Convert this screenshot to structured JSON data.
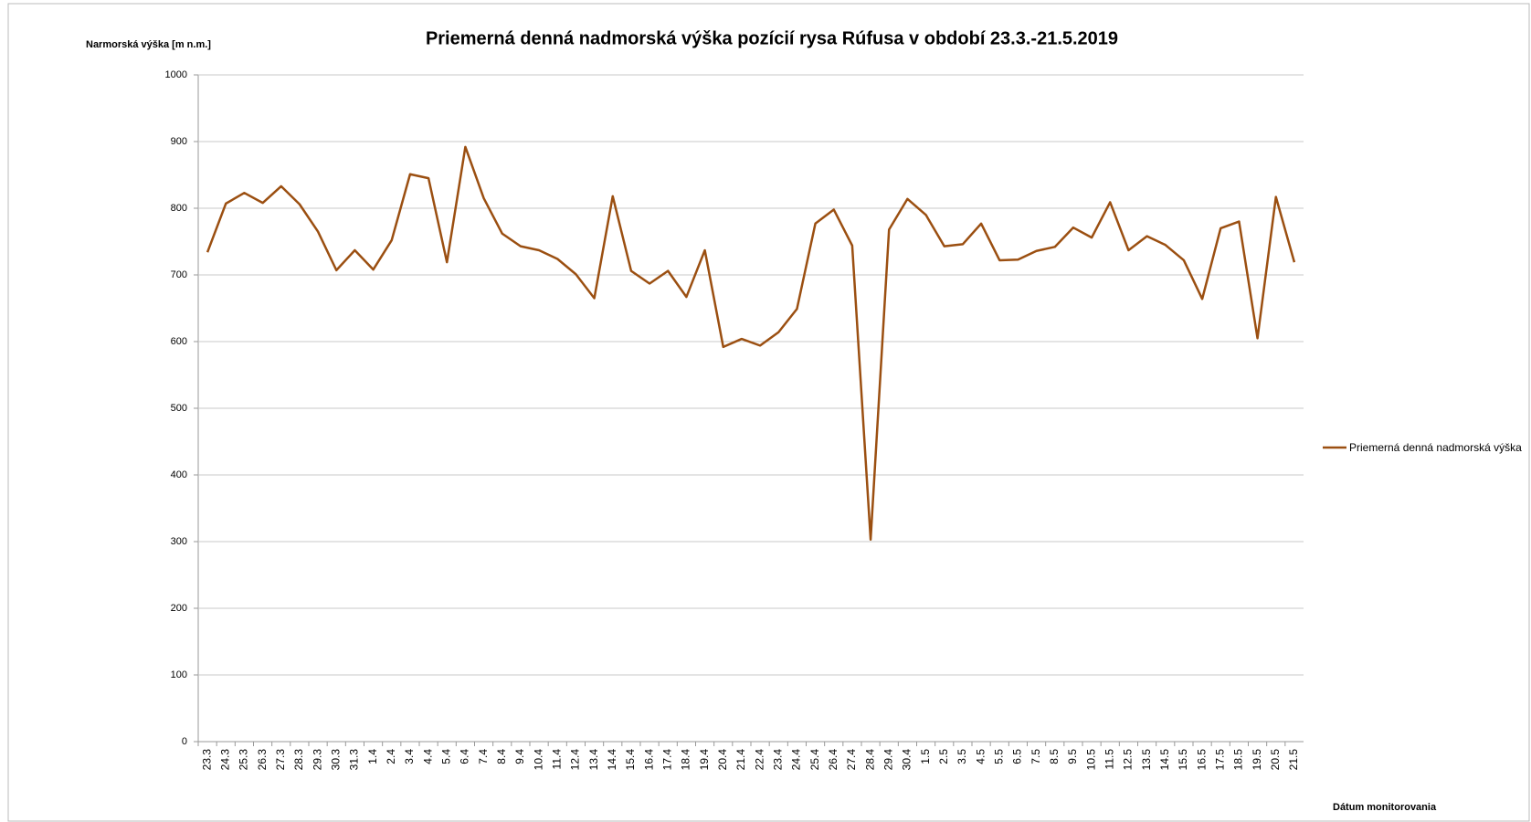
{
  "chart_data": {
    "type": "line",
    "title": "Priemerná denná nadmorská výška pozícií rysa Rúfusa v období 23.3.-21.5.2019",
    "y_label": "Narmorská výška [m n.m.]",
    "x_label": "Dátum monitorovania",
    "categories": [
      "23.3",
      "24.3",
      "25.3",
      "26.3",
      "27.3",
      "28.3",
      "29.3",
      "30.3",
      "31.3",
      "1.4",
      "2.4",
      "3.4",
      "4.4",
      "5.4",
      "6.4",
      "7.4",
      "8.4",
      "9.4",
      "10.4",
      "11.4",
      "12.4",
      "13.4",
      "14.4",
      "15.4",
      "16.4",
      "17.4",
      "18.4",
      "19.4",
      "20.4",
      "21.4",
      "22.4",
      "23.4",
      "24.4",
      "25.4",
      "26.4",
      "27.4",
      "28.4",
      "29.4",
      "30.4",
      "1.5",
      "2.5",
      "3.5",
      "4.5",
      "5.5",
      "6.5",
      "7.5",
      "8.5",
      "9.5",
      "10.5",
      "11.5",
      "12.5",
      "13.5",
      "14.5",
      "15.5",
      "16.5",
      "17.5",
      "18.5",
      "19.5",
      "20.5",
      "21.5"
    ],
    "series": [
      {
        "name": "Priemerná denná nadmorská výška",
        "color": "#9b4f11",
        "values": [
          734,
          807,
          823,
          808,
          833,
          806,
          765,
          707,
          737,
          708,
          752,
          851,
          845,
          719,
          892,
          815,
          762,
          743,
          737,
          724,
          701,
          665,
          818,
          706,
          687,
          706,
          667,
          737,
          592,
          604,
          594,
          614,
          649,
          777,
          798,
          744,
          303,
          768,
          814,
          790,
          743,
          746,
          777,
          722,
          723,
          736,
          742,
          771,
          756,
          809,
          737,
          758,
          745,
          722,
          664,
          770,
          780,
          605,
          817,
          719
        ]
      }
    ],
    "ylim": [
      0,
      1000
    ],
    "yticks": [
      0,
      100,
      200,
      300,
      400,
      500,
      600,
      700,
      800,
      900,
      1000
    ],
    "grid": true,
    "legend": "right"
  }
}
